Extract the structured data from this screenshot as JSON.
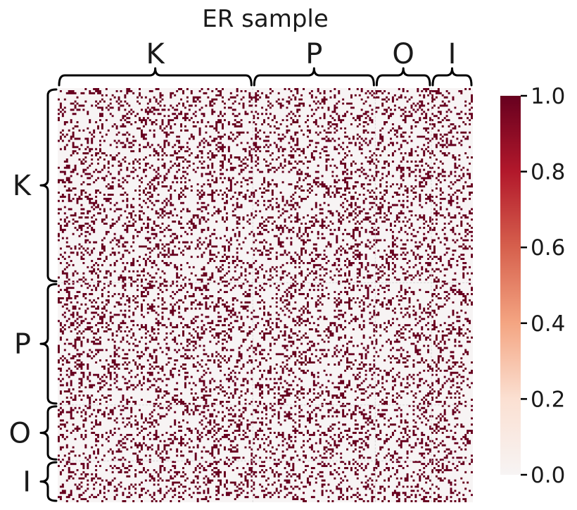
{
  "chart_data": {
    "type": "heatmap",
    "title": "ER sample",
    "xlabel": "",
    "ylabel": "",
    "description_kind": "binary adjacency matrix sample",
    "n_nodes": 200,
    "blocks": [
      {
        "label": "K",
        "size": 94
      },
      {
        "label": "P",
        "size": 59
      },
      {
        "label": "O",
        "size": 27
      },
      {
        "label": "I",
        "size": 20
      }
    ],
    "density": 0.22,
    "value_range": [
      0,
      1
    ],
    "colorbar": {
      "colormap": "RdBu_r (upper half)",
      "ticks": [
        "0.0",
        "0.2",
        "0.4",
        "0.6",
        "0.8",
        "1.0"
      ],
      "tick_values": [
        0,
        0.2,
        0.4,
        0.6,
        0.8,
        1.0
      ],
      "min_color": "#f7f4f4",
      "max_color": "#67001f",
      "stops": [
        "#f7f4f4",
        "#fbe0d2",
        "#f4a582",
        "#d6604d",
        "#b2182b",
        "#67001f"
      ]
    }
  }
}
